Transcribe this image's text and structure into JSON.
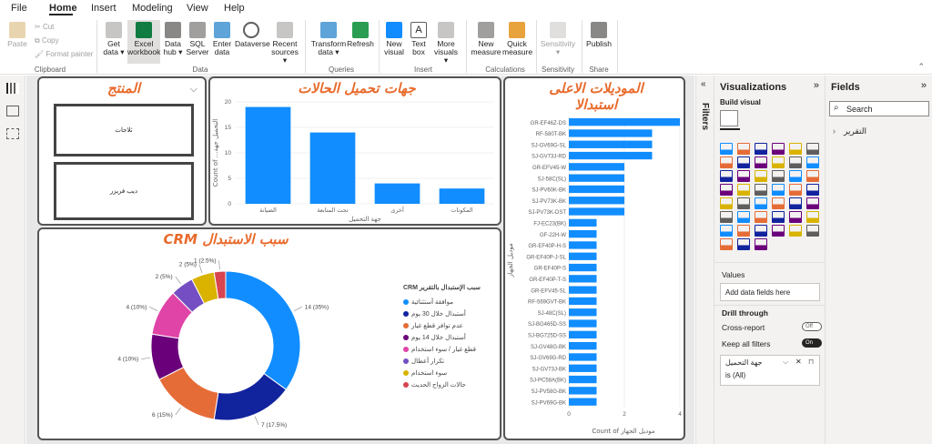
{
  "menu": [
    "File",
    "Home",
    "Insert",
    "Modeling",
    "View",
    "Help"
  ],
  "ribbon": {
    "clipboard": {
      "paste": "Paste",
      "cut": "Cut",
      "copy": "Copy",
      "format_painter": "Format painter",
      "label": "Clipboard"
    },
    "data": {
      "get_data": "Get data ▾",
      "excel": "Excel workbook",
      "data_hub": "Data hub ▾",
      "sql": "SQL Server",
      "enter": "Enter data",
      "dataverse": "Dataverse",
      "recent": "Recent sources ▾",
      "label": "Data"
    },
    "queries": {
      "transform": "Transform data ▾",
      "refresh": "Refresh",
      "label": "Queries"
    },
    "insert": {
      "new_visual": "New visual",
      "text_box": "Text box",
      "more_visuals": "More visuals ▾",
      "label": "Insert"
    },
    "calculations": {
      "new_measure": "New measure",
      "quick_measure": "Quick measure",
      "label": "Calculations"
    },
    "sensitivity": {
      "btn": "Sensitivity ▾",
      "label": "Sensitivity"
    },
    "share": {
      "publish": "Publish",
      "label": "Share"
    }
  },
  "slicer": {
    "title": "المنتج",
    "items": [
      "ثلاجات",
      "ديب فريزر"
    ]
  },
  "bar_chart": {
    "title": "جهات تحميل الحالات",
    "ylabel": "Count of ...التحميل جهة",
    "xlabel": "جهة التحميل",
    "yticks": [
      "20",
      "15",
      "10",
      "5",
      "0"
    ]
  },
  "hbar_chart": {
    "title_line1": "الموديلات الاعلى",
    "title_line2": "استبدالا",
    "ylabel": "موديل الجهاز",
    "xlabel": "Count of موديل الجهاز",
    "xticks": [
      "0",
      "2",
      "4"
    ]
  },
  "donut": {
    "title": "CRM سبب الاستبدال",
    "legend_title": "CRM سبب الإستبدال بالتقرير"
  },
  "chart_data": [
    {
      "type": "bar",
      "title": "جهات تحميل الحالات",
      "categories": [
        "الصيانة",
        "تحت المتابعة",
        "أخرى",
        "المكونات"
      ],
      "values": [
        19,
        14,
        4,
        3
      ],
      "xlabel": "جهة التحميل",
      "ylabel": "Count of ...التحميل جهة",
      "ylim": [
        0,
        20
      ]
    },
    {
      "type": "bar",
      "orientation": "horizontal",
      "title": "الموديلات الاعلى استبدالا",
      "categories": [
        "GR-EF46Z-DS",
        "RF-580T-BK",
        "SJ-GV69G-SL",
        "SJ-GV73J-RD",
        "GR-EFV45-W",
        "SJ-58C(SL)",
        "SJ-PV60K-BK",
        "SJ-PV73K-BK",
        "SJ-PV73K-DST",
        "FJ-EC23(BK)",
        "GF-22H-W",
        "GR-EF40P-H-S",
        "GR-EF40P-J-SL",
        "GR-EF40P-S",
        "GR-EF40P-T-S",
        "GR-EFV45-SL",
        "RF-569GVT-BK",
        "SJ-48C(SL)",
        "SJ-BG465D-SS",
        "SJ-BG725D-SS",
        "SJ-GV48G-BK",
        "SJ-GV69G-RD",
        "SJ-GV73J-BK",
        "SJ-PC58A(BK)",
        "SJ-PV58G-BK",
        "SJ-PV69G-BK"
      ],
      "values": [
        4,
        3,
        3,
        3,
        2,
        2,
        2,
        2,
        2,
        1,
        1,
        1,
        1,
        1,
        1,
        1,
        1,
        1,
        1,
        1,
        1,
        1,
        1,
        1,
        1,
        1
      ],
      "xlabel": "Count of موديل الجهاز",
      "ylabel": "موديل الجهاز",
      "xlim": [
        0,
        4
      ]
    },
    {
      "type": "pie",
      "donut": true,
      "title": "CRM سبب الاستبدال",
      "labels": [
        "موافقة أستثنائية",
        "أستبدال خلال 30 يوم",
        "عدم توافر قطع غيار",
        "أستبدال خلال 14 يوم",
        "قطع غيار / سوء استخدام",
        "تكرار أعطال",
        "سوء استخدام",
        "حالات الزواج الحديث"
      ],
      "values": [
        14,
        7,
        6,
        4,
        4,
        2,
        2,
        1
      ],
      "data_labels": [
        "14 (35%)",
        "7 (17.5%)",
        "6 (15%)",
        "4 (10%)",
        "4 (10%)",
        "2 (5%)",
        "2 (5%)",
        "1 (2.5%)"
      ],
      "colors": [
        "#118dff",
        "#12239e",
        "#e66c37",
        "#6b007b",
        "#e044a7",
        "#744ec2",
        "#d9b300",
        "#d64550"
      ]
    }
  ],
  "filters_label": "Filters",
  "viz": {
    "title": "Visualizations",
    "build": "Build visual",
    "values": "Values",
    "add_fields": "Add data fields here",
    "drill": "Drill through",
    "cross_report": "Cross-report",
    "cross_state": "Off",
    "keep_filters": "Keep all filters",
    "keep_state": "On",
    "filter_field": "جهة التحميل",
    "filter_value": "is (All)"
  },
  "fields": {
    "title": "Fields",
    "search": "Search",
    "table": "التقرير"
  }
}
